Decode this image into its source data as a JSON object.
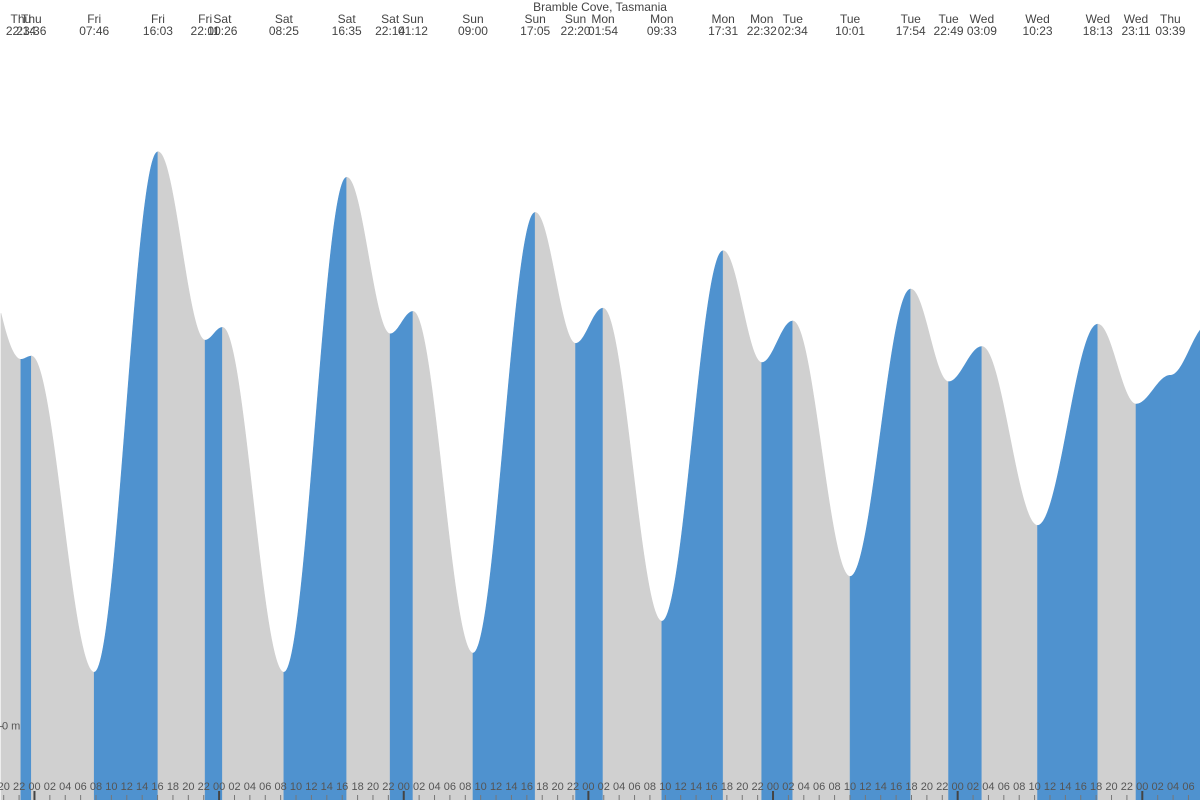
{
  "chart_data": {
    "type": "area",
    "title": "Bramble Cove, Tasmania",
    "x": [
      -1.767,
      -0.4,
      7.767,
      16.05,
      22.183,
      24.433,
      32.417,
      40.583,
      46.233,
      49.2,
      57,
      65.083,
      70.333,
      73.9,
      81.55,
      89.517,
      94.533,
      98.567,
      106.017,
      113.9,
      118.817,
      123.15,
      130.383,
      138.217,
      143.183,
      147.65
    ],
    "days": [
      "Thu",
      "Thu",
      "Fri",
      "Fri",
      "Fri",
      "Sat",
      "Sat",
      "Sat",
      "Sat",
      "Sun",
      "Sun",
      "Sun",
      "Sun",
      "Mon",
      "Mon",
      "Mon",
      "Mon",
      "Tue",
      "Tue",
      "Tue",
      "Tue",
      "Wed",
      "Wed",
      "Wed",
      "Wed",
      "Thu"
    ],
    "times": [
      "22:14",
      "23:36",
      "07:46",
      "16:03",
      "22:11",
      "00:26",
      "08:25",
      "16:35",
      "22:14",
      "01:12",
      "09:00",
      "17:05",
      "22:20",
      "01:54",
      "09:33",
      "17:31",
      "22:32",
      "02:34",
      "10:01",
      "17:54",
      "22:49",
      "03:09",
      "10:23",
      "18:13",
      "23:11",
      "03:39"
    ],
    "values": [
      1.15,
      1.16,
      0.17,
      1.8,
      1.21,
      1.25,
      0.17,
      1.72,
      1.23,
      1.3,
      0.23,
      1.61,
      1.2,
      1.31,
      0.33,
      1.49,
      1.14,
      1.27,
      0.47,
      1.37,
      1.08,
      1.19,
      0.63,
      1.26,
      1.01,
      1.1
    ],
    "rising_color": "#4f92cf",
    "falling_color": "#d0d0d0",
    "xlim": [
      -4.48,
      151.5
    ],
    "ylim": [
      -0.23,
      2.15
    ],
    "yticks": [
      {
        "value": 0,
        "label": "0 m"
      }
    ],
    "xticks": [
      {
        "value": -4,
        "label": "20"
      },
      {
        "value": -2,
        "label": "22"
      },
      {
        "value": 0,
        "label": "00"
      },
      {
        "value": 2,
        "label": "02"
      },
      {
        "value": 4,
        "label": "04"
      },
      {
        "value": 6,
        "label": "06"
      },
      {
        "value": 8,
        "label": "08"
      },
      {
        "value": 10,
        "label": "10"
      },
      {
        "value": 12,
        "label": "12"
      },
      {
        "value": 14,
        "label": "14"
      },
      {
        "value": 16,
        "label": "16"
      },
      {
        "value": 18,
        "label": "18"
      },
      {
        "value": 20,
        "label": "20"
      },
      {
        "value": 22,
        "label": "22"
      },
      {
        "value": 24,
        "label": "00"
      },
      {
        "value": 26,
        "label": "02"
      },
      {
        "value": 28,
        "label": "04"
      },
      {
        "value": 30,
        "label": "06"
      },
      {
        "value": 32,
        "label": "08"
      },
      {
        "value": 34,
        "label": "10"
      },
      {
        "value": 36,
        "label": "12"
      },
      {
        "value": 38,
        "label": "14"
      },
      {
        "value": 40,
        "label": "16"
      },
      {
        "value": 42,
        "label": "18"
      },
      {
        "value": 44,
        "label": "20"
      },
      {
        "value": 46,
        "label": "22"
      },
      {
        "value": 48,
        "label": "00"
      },
      {
        "value": 50,
        "label": "02"
      },
      {
        "value": 52,
        "label": "04"
      },
      {
        "value": 54,
        "label": "06"
      },
      {
        "value": 56,
        "label": "08"
      },
      {
        "value": 58,
        "label": "10"
      },
      {
        "value": 60,
        "label": "12"
      },
      {
        "value": 62,
        "label": "14"
      },
      {
        "value": 64,
        "label": "16"
      },
      {
        "value": 66,
        "label": "18"
      },
      {
        "value": 68,
        "label": "20"
      },
      {
        "value": 70,
        "label": "22"
      },
      {
        "value": 72,
        "label": "00"
      },
      {
        "value": 74,
        "label": "02"
      },
      {
        "value": 76,
        "label": "04"
      },
      {
        "value": 78,
        "label": "06"
      },
      {
        "value": 80,
        "label": "08"
      },
      {
        "value": 82,
        "label": "10"
      },
      {
        "value": 84,
        "label": "12"
      },
      {
        "value": 86,
        "label": "14"
      },
      {
        "value": 88,
        "label": "16"
      },
      {
        "value": 90,
        "label": "18"
      },
      {
        "value": 92,
        "label": "20"
      },
      {
        "value": 94,
        "label": "22"
      },
      {
        "value": 96,
        "label": "00"
      },
      {
        "value": 98,
        "label": "02"
      },
      {
        "value": 100,
        "label": "04"
      },
      {
        "value": 102,
        "label": "06"
      },
      {
        "value": 104,
        "label": "08"
      },
      {
        "value": 106,
        "label": "10"
      },
      {
        "value": 108,
        "label": "12"
      },
      {
        "value": 110,
        "label": "14"
      },
      {
        "value": 112,
        "label": "16"
      },
      {
        "value": 114,
        "label": "18"
      },
      {
        "value": 116,
        "label": "20"
      },
      {
        "value": 118,
        "label": "22"
      },
      {
        "value": 120,
        "label": "00"
      },
      {
        "value": 122,
        "label": "02"
      },
      {
        "value": 124,
        "label": "04"
      },
      {
        "value": 126,
        "label": "06"
      },
      {
        "value": 128,
        "label": "08"
      },
      {
        "value": 130,
        "label": "10"
      },
      {
        "value": 132,
        "label": "12"
      },
      {
        "value": 134,
        "label": "14"
      },
      {
        "value": 136,
        "label": "16"
      },
      {
        "value": 138,
        "label": "18"
      },
      {
        "value": 140,
        "label": "20"
      },
      {
        "value": 142,
        "label": "22"
      },
      {
        "value": 144,
        "label": "00"
      },
      {
        "value": 146,
        "label": "02"
      },
      {
        "value": 148,
        "label": "04"
      },
      {
        "value": 150,
        "label": "06"
      }
    ]
  }
}
